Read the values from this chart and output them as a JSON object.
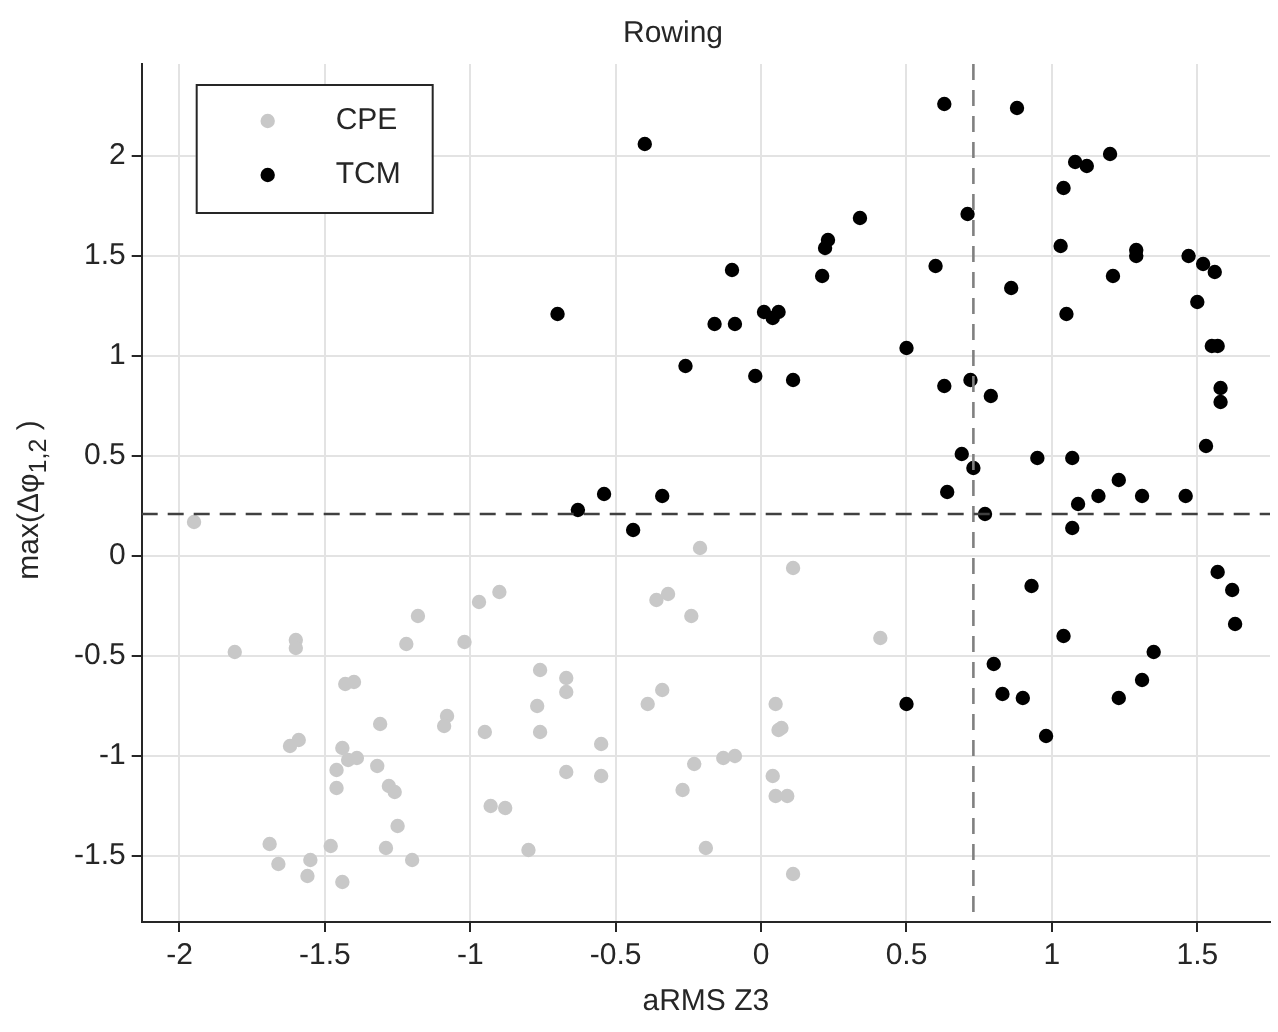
{
  "chart_data": {
    "type": "scatter",
    "title": "Rowing",
    "xlabel": "aRMS Z3",
    "ylabel": "max(Δφ$_{1,2}$ )",
    "xlim": [
      -2.13,
      1.75
    ],
    "ylim": [
      -1.83,
      2.46
    ],
    "xticks": [
      -2,
      -1.5,
      -1,
      -0.5,
      0,
      0.5,
      1,
      1.5
    ],
    "yticks": [
      -1.5,
      -1,
      -0.5,
      0,
      0.5,
      1,
      1.5,
      2
    ],
    "grid": true,
    "legend": "top left",
    "marker": "circle",
    "ref_lines": [
      {
        "axis": "x",
        "value": 0.73,
        "color": "#808080",
        "line_style": "dashed"
      },
      {
        "axis": "y",
        "value": 0.21,
        "color": "#404040",
        "line_style": "dashed"
      }
    ],
    "series": [
      {
        "name": "CPE",
        "color": "#c8c8c8",
        "x": [
          -1.95,
          -1.81,
          -1.6,
          -1.6,
          -1.62,
          -1.59,
          -1.43,
          -1.4,
          -1.44,
          -1.42,
          -1.39,
          -1.46,
          -1.46,
          -1.32,
          -1.31,
          -1.28,
          -1.26,
          -1.25,
          -1.29,
          -1.2,
          -1.48,
          -1.55,
          -1.56,
          -1.66,
          -1.69,
          -1.44,
          -1.22,
          -1.18,
          -1.02,
          -0.97,
          -0.9,
          -1.08,
          -1.09,
          -0.95,
          -0.93,
          -0.88,
          -0.8,
          -0.76,
          -0.77,
          -0.76,
          -0.67,
          -0.67,
          -0.67,
          -0.55,
          -0.55,
          -0.39,
          -0.34,
          -0.36,
          -0.32,
          -0.24,
          -0.23,
          -0.27,
          -0.21,
          0.11,
          0.41,
          0.05,
          0.06,
          0.07,
          -0.13,
          -0.09,
          0.04,
          0.05,
          0.09,
          -0.19,
          0.11
        ],
        "values": [
          0.17,
          -0.48,
          -0.42,
          -0.46,
          -0.95,
          -0.92,
          -0.64,
          -0.63,
          -0.96,
          -1.02,
          -1.01,
          -1.07,
          -1.16,
          -1.05,
          -0.84,
          -1.15,
          -1.18,
          -1.35,
          -1.46,
          -1.52,
          -1.45,
          -1.52,
          -1.6,
          -1.54,
          -1.44,
          -1.63,
          -0.44,
          -0.3,
          -0.43,
          -0.23,
          -0.18,
          -0.8,
          -0.85,
          -0.88,
          -1.25,
          -1.26,
          -1.47,
          -0.57,
          -0.75,
          -0.88,
          -0.61,
          -0.68,
          -1.08,
          -0.94,
          -1.1,
          -0.74,
          -0.67,
          -0.22,
          -0.19,
          -0.3,
          -1.04,
          -1.17,
          0.04,
          -0.06,
          -0.41,
          -0.74,
          -0.87,
          -0.86,
          -1.01,
          -1.0,
          -1.1,
          -1.2,
          -1.2,
          -1.46,
          -1.59
        ]
      },
      {
        "name": "TCM",
        "color": "#000000",
        "x": [
          -0.4,
          -0.7,
          -0.26,
          -0.63,
          -0.54,
          -0.34,
          -0.44,
          0.63,
          0.88,
          1.08,
          1.12,
          1.2,
          1.04,
          0.71,
          0.34,
          0.23,
          0.22,
          0.21,
          -0.1,
          0.6,
          1.03,
          1.29,
          1.29,
          1.21,
          0.86,
          1.05,
          1.47,
          1.52,
          1.56,
          1.5,
          0.01,
          0.06,
          0.04,
          -0.16,
          -0.09,
          0.5,
          -0.02,
          0.11,
          0.63,
          0.72,
          0.79,
          1.55,
          1.57,
          1.58,
          1.58,
          1.53,
          0.69,
          0.73,
          0.95,
          1.07,
          1.23,
          1.16,
          1.09,
          1.31,
          1.46,
          0.64,
          0.77,
          1.07,
          1.57,
          1.62,
          1.63,
          0.93,
          1.04,
          0.8,
          0.83,
          0.9,
          0.98,
          1.23,
          1.31,
          1.35,
          0.5
        ],
        "values": [
          2.06,
          1.21,
          0.95,
          0.23,
          0.31,
          0.3,
          0.13,
          2.26,
          2.24,
          1.97,
          1.95,
          2.01,
          1.84,
          1.71,
          1.69,
          1.58,
          1.54,
          1.4,
          1.43,
          1.45,
          1.55,
          1.53,
          1.5,
          1.4,
          1.34,
          1.21,
          1.5,
          1.46,
          1.42,
          1.27,
          1.22,
          1.22,
          1.19,
          1.16,
          1.16,
          1.04,
          0.9,
          0.88,
          0.85,
          0.88,
          0.8,
          1.05,
          1.05,
          0.84,
          0.77,
          0.55,
          0.51,
          0.44,
          0.49,
          0.49,
          0.38,
          0.3,
          0.26,
          0.3,
          0.3,
          0.32,
          0.21,
          0.14,
          -0.08,
          -0.17,
          -0.34,
          -0.15,
          -0.4,
          -0.54,
          -0.69,
          -0.71,
          -0.9,
          -0.71,
          -0.62,
          -0.48,
          -0.74
        ]
      }
    ]
  }
}
